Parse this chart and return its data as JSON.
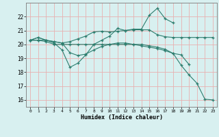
{
  "xlabel": "Humidex (Indice chaleur)",
  "x_values": [
    0,
    1,
    2,
    3,
    4,
    5,
    6,
    7,
    8,
    9,
    10,
    11,
    12,
    13,
    14,
    15,
    16,
    17,
    18,
    19,
    20,
    21,
    22,
    23
  ],
  "line1": [
    20.3,
    20.5,
    20.3,
    20.2,
    20.1,
    20.2,
    20.4,
    20.6,
    20.9,
    20.95,
    20.9,
    20.95,
    21.0,
    21.05,
    21.05,
    21.05,
    20.7,
    20.55,
    20.5,
    20.5,
    20.5,
    20.5,
    20.5,
    20.5
  ],
  "line2": [
    20.3,
    20.5,
    20.3,
    20.1,
    19.6,
    18.35,
    18.65,
    19.25,
    20.0,
    20.3,
    20.6,
    21.15,
    21.0,
    21.1,
    21.1,
    22.1,
    22.6,
    21.85,
    21.55,
    null,
    null,
    null,
    null,
    null
  ],
  "line3": [
    20.3,
    20.3,
    20.3,
    20.2,
    20.1,
    19.4,
    19.2,
    19.3,
    19.6,
    19.85,
    20.0,
    20.1,
    20.1,
    20.0,
    19.9,
    19.8,
    19.7,
    19.55,
    19.35,
    19.25,
    18.55,
    null,
    null,
    null
  ],
  "line4": [
    20.3,
    20.3,
    20.2,
    20.0,
    20.0,
    20.0,
    20.0,
    20.0,
    20.0,
    20.0,
    20.0,
    20.0,
    20.0,
    20.0,
    20.0,
    19.9,
    19.8,
    19.65,
    19.35,
    18.5,
    17.8,
    17.2,
    16.05,
    16.0
  ],
  "line_color": "#2d7d6e",
  "bg_color": "#d8f0f0",
  "grid_color": "#e8b0b0",
  "ylim": [
    15.5,
    23.0
  ],
  "yticks": [
    16,
    17,
    18,
    19,
    20,
    21,
    22
  ],
  "xticks": [
    0,
    1,
    2,
    3,
    4,
    5,
    6,
    7,
    8,
    9,
    10,
    11,
    12,
    13,
    14,
    15,
    16,
    17,
    18,
    19,
    20,
    21,
    22,
    23
  ]
}
